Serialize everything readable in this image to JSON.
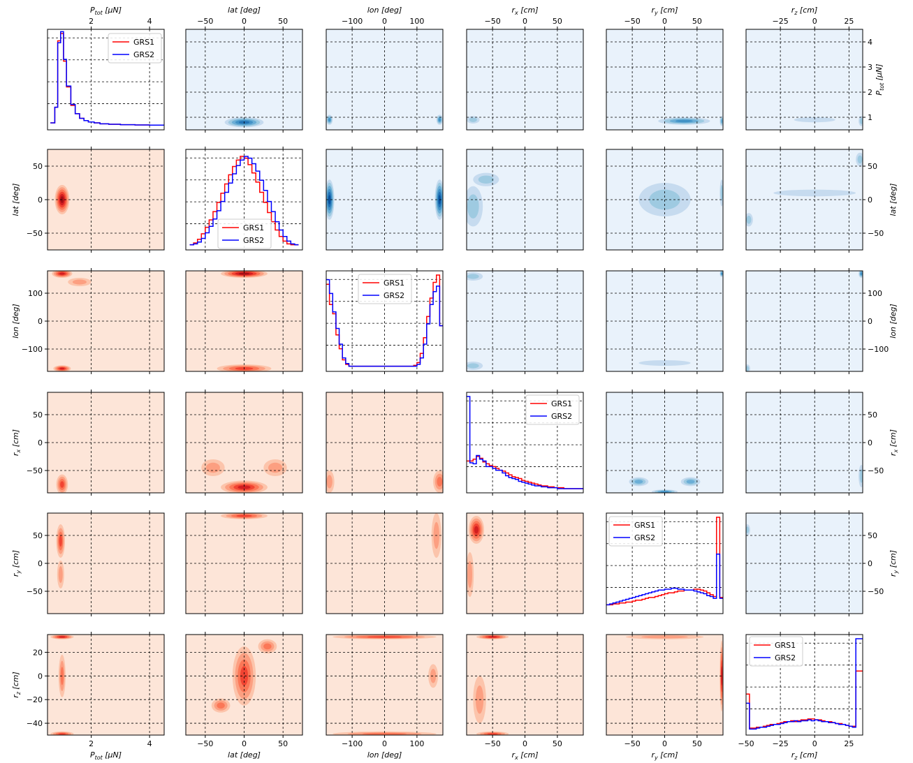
{
  "chart_data": {
    "type": "corner",
    "variables": [
      {
        "key": "ptot",
        "label": "P_tot [μN]",
        "label_main": "P",
        "label_sub": "tot",
        "label_unit": " [μN]",
        "range": [
          0.5,
          4.5
        ],
        "ticks": [
          2,
          4
        ],
        "ticks_right": [
          1,
          2,
          3,
          4
        ]
      },
      {
        "key": "lat",
        "label": "lat [deg]",
        "label_main": "lat",
        "label_sub": "",
        "label_unit": " [deg]",
        "range": [
          -75,
          75
        ],
        "ticks": [
          -50,
          0,
          50
        ]
      },
      {
        "key": "lon",
        "label": "lon [deg]",
        "label_main": "lon",
        "label_sub": "",
        "label_unit": " [deg]",
        "range": [
          -180,
          180
        ],
        "ticks": [
          -100,
          0,
          100
        ]
      },
      {
        "key": "rx",
        "label": "r_x [cm]",
        "label_main": "r",
        "label_sub": "x",
        "label_unit": " [cm]",
        "range": [
          -90,
          90
        ],
        "ticks": [
          -50,
          0,
          50
        ]
      },
      {
        "key": "ry",
        "label": "r_y [cm]",
        "label_main": "r",
        "label_sub": "y",
        "label_unit": " [cm]",
        "range": [
          -90,
          90
        ],
        "ticks": [
          -50,
          0,
          50
        ]
      },
      {
        "key": "rz",
        "label": "r_z [cm]",
        "label_main": "r",
        "label_sub": "z",
        "label_unit": " [cm]",
        "range": [
          -50,
          35
        ],
        "ticks": [
          -50,
          -25,
          0,
          25
        ],
        "ticks_top": [
          -25,
          0,
          25
        ],
        "ticks_left": [
          -40,
          -20,
          0,
          20
        ]
      }
    ],
    "series": [
      {
        "name": "GRS1",
        "color": "#ff0000"
      },
      {
        "name": "GRS2",
        "color": "#0000ff"
      }
    ],
    "lower_triangle": {
      "name": "GRS1",
      "colormap": "Reds",
      "base_color": "#fde5d8"
    },
    "upper_triangle": {
      "name": "GRS2",
      "colormap": "Blues",
      "base_color": "#e9f2fb"
    },
    "grid": true,
    "grid_style": "dashed",
    "legend": "upper right (diagonal panels)",
    "histograms": {
      "ptot": {
        "bins": [
          0.6,
          0.75,
          0.85,
          0.95,
          1.05,
          1.15,
          1.3,
          1.45,
          1.6,
          1.75,
          1.9,
          2.1,
          2.3,
          2.6,
          3.0,
          3.5,
          4.0,
          4.5
        ],
        "GRS1": [
          0.03,
          0.2,
          0.92,
          1.0,
          0.7,
          0.42,
          0.22,
          0.13,
          0.08,
          0.055,
          0.04,
          0.03,
          0.02,
          0.015,
          0.01,
          0.008,
          0.006
        ],
        "GRS2": [
          0.03,
          0.2,
          0.9,
          1.02,
          0.72,
          0.43,
          0.23,
          0.13,
          0.08,
          0.055,
          0.04,
          0.03,
          0.02,
          0.015,
          0.01,
          0.008,
          0.006
        ]
      },
      "lat": {
        "bins": [
          -70,
          -65,
          -60,
          -55,
          -50,
          -45,
          -40,
          -35,
          -30,
          -25,
          -20,
          -15,
          -10,
          -5,
          0,
          5,
          10,
          15,
          20,
          25,
          30,
          35,
          40,
          45,
          50,
          55,
          60,
          65,
          70
        ],
        "GRS1": [
          0.01,
          0.03,
          0.07,
          0.13,
          0.2,
          0.28,
          0.37,
          0.47,
          0.57,
          0.67,
          0.77,
          0.86,
          0.93,
          0.97,
          0.95,
          0.88,
          0.79,
          0.69,
          0.58,
          0.47,
          0.36,
          0.26,
          0.17,
          0.1,
          0.05,
          0.02,
          0.01,
          0.01
        ],
        "GRS2": [
          0.01,
          0.02,
          0.04,
          0.08,
          0.14,
          0.21,
          0.29,
          0.38,
          0.48,
          0.58,
          0.68,
          0.78,
          0.87,
          0.93,
          0.97,
          0.95,
          0.89,
          0.81,
          0.71,
          0.6,
          0.48,
          0.37,
          0.26,
          0.17,
          0.1,
          0.05,
          0.02,
          0.01
        ]
      },
      "lon": {
        "bins": [
          -180,
          -170,
          -160,
          -150,
          -140,
          -130,
          -120,
          -110,
          -100,
          -90,
          -80,
          -70,
          -60,
          -50,
          -40,
          -30,
          -20,
          -10,
          0,
          10,
          20,
          30,
          40,
          50,
          60,
          70,
          80,
          90,
          100,
          110,
          120,
          130,
          140,
          150,
          160,
          170,
          180
        ],
        "GRS1": [
          0.9,
          0.68,
          0.58,
          0.35,
          0.2,
          0.08,
          0.03,
          0.01,
          0.01,
          0.01,
          0.01,
          0.01,
          0.01,
          0.01,
          0.01,
          0.01,
          0.01,
          0.01,
          0.01,
          0.01,
          0.01,
          0.01,
          0.01,
          0.01,
          0.01,
          0.01,
          0.01,
          0.02,
          0.05,
          0.15,
          0.32,
          0.55,
          0.75,
          0.92,
          1.0,
          0.45
        ],
        "GRS2": [
          0.95,
          0.8,
          0.6,
          0.42,
          0.25,
          0.1,
          0.04,
          0.01,
          0.01,
          0.01,
          0.01,
          0.01,
          0.01,
          0.01,
          0.01,
          0.01,
          0.01,
          0.01,
          0.01,
          0.01,
          0.01,
          0.01,
          0.01,
          0.01,
          0.01,
          0.01,
          0.01,
          0.01,
          0.03,
          0.1,
          0.25,
          0.47,
          0.68,
          0.82,
          0.88,
          0.45
        ]
      },
      "rx": {
        "bins": [
          -90,
          -85,
          -80,
          -75,
          -70,
          -65,
          -60,
          -55,
          -50,
          -45,
          -40,
          -35,
          -30,
          -25,
          -20,
          -15,
          -10,
          -5,
          0,
          5,
          10,
          15,
          20,
          25,
          30,
          35,
          40,
          45,
          50,
          55,
          60,
          65,
          70,
          75,
          80,
          85,
          90
        ],
        "GRS1": [
          0.3,
          0.3,
          0.32,
          0.35,
          0.33,
          0.29,
          0.27,
          0.25,
          0.24,
          0.22,
          0.2,
          0.19,
          0.17,
          0.15,
          0.13,
          0.12,
          0.11,
          0.09,
          0.08,
          0.07,
          0.06,
          0.05,
          0.04,
          0.03,
          0.03,
          0.02,
          0.02,
          0.01,
          0.01,
          0.01,
          0.0,
          0.0,
          0.0,
          0.0,
          0.0,
          0.0
        ],
        "GRS2": [
          1.0,
          0.28,
          0.27,
          0.36,
          0.32,
          0.3,
          0.24,
          0.24,
          0.22,
          0.2,
          0.2,
          0.17,
          0.14,
          0.12,
          0.11,
          0.1,
          0.08,
          0.07,
          0.06,
          0.05,
          0.04,
          0.03,
          0.03,
          0.02,
          0.02,
          0.01,
          0.01,
          0.01,
          0.0,
          0.0,
          0.0,
          0.0,
          0.0,
          0.0,
          0.0,
          0.0
        ]
      },
      "ry": {
        "bins": [
          -90,
          -85,
          -80,
          -75,
          -70,
          -65,
          -60,
          -55,
          -50,
          -45,
          -40,
          -35,
          -30,
          -25,
          -20,
          -15,
          -10,
          -5,
          0,
          5,
          10,
          15,
          20,
          25,
          30,
          35,
          40,
          45,
          50,
          55,
          60,
          65,
          70,
          75,
          80,
          85,
          90
        ],
        "GRS1": [
          0.05,
          0.05,
          0.06,
          0.06,
          0.07,
          0.07,
          0.08,
          0.08,
          0.09,
          0.1,
          0.1,
          0.11,
          0.12,
          0.13,
          0.13,
          0.14,
          0.15,
          0.16,
          0.17,
          0.18,
          0.18,
          0.19,
          0.2,
          0.2,
          0.21,
          0.21,
          0.21,
          0.22,
          0.22,
          0.21,
          0.2,
          0.18,
          0.16,
          0.14,
          1.0,
          0.13
        ],
        "GRS2": [
          0.05,
          0.06,
          0.07,
          0.08,
          0.09,
          0.1,
          0.11,
          0.12,
          0.13,
          0.14,
          0.15,
          0.16,
          0.17,
          0.18,
          0.19,
          0.2,
          0.21,
          0.21,
          0.22,
          0.22,
          0.23,
          0.23,
          0.22,
          0.22,
          0.21,
          0.21,
          0.21,
          0.2,
          0.19,
          0.18,
          0.17,
          0.15,
          0.14,
          0.12,
          0.6,
          0.12
        ]
      },
      "rz": {
        "bins": [
          -50,
          -47.5,
          -45,
          -42.5,
          -40,
          -37.5,
          -35,
          -32.5,
          -30,
          -27.5,
          -25,
          -22.5,
          -20,
          -17.5,
          -15,
          -12.5,
          -10,
          -7.5,
          -5,
          -2.5,
          0,
          2.5,
          5,
          7.5,
          10,
          12.5,
          15,
          17.5,
          20,
          22.5,
          25,
          27.5,
          30,
          32.5,
          35
        ],
        "GRS1": [
          0.4,
          0.03,
          0.03,
          0.04,
          0.04,
          0.05,
          0.06,
          0.07,
          0.07,
          0.08,
          0.09,
          0.1,
          0.1,
          0.11,
          0.1,
          0.11,
          0.12,
          0.12,
          0.13,
          0.13,
          0.12,
          0.12,
          0.11,
          0.1,
          0.1,
          0.09,
          0.08,
          0.08,
          0.07,
          0.06,
          0.05,
          0.05,
          0.65,
          0.65
        ],
        "GRS2": [
          0.3,
          0.02,
          0.02,
          0.03,
          0.04,
          0.04,
          0.05,
          0.06,
          0.07,
          0.07,
          0.08,
          0.09,
          0.1,
          0.1,
          0.11,
          0.1,
          0.11,
          0.11,
          0.12,
          0.11,
          0.12,
          0.11,
          0.1,
          0.1,
          0.09,
          0.09,
          0.08,
          0.07,
          0.07,
          0.06,
          0.05,
          0.04,
          1.0,
          1.0
        ]
      }
    }
  }
}
